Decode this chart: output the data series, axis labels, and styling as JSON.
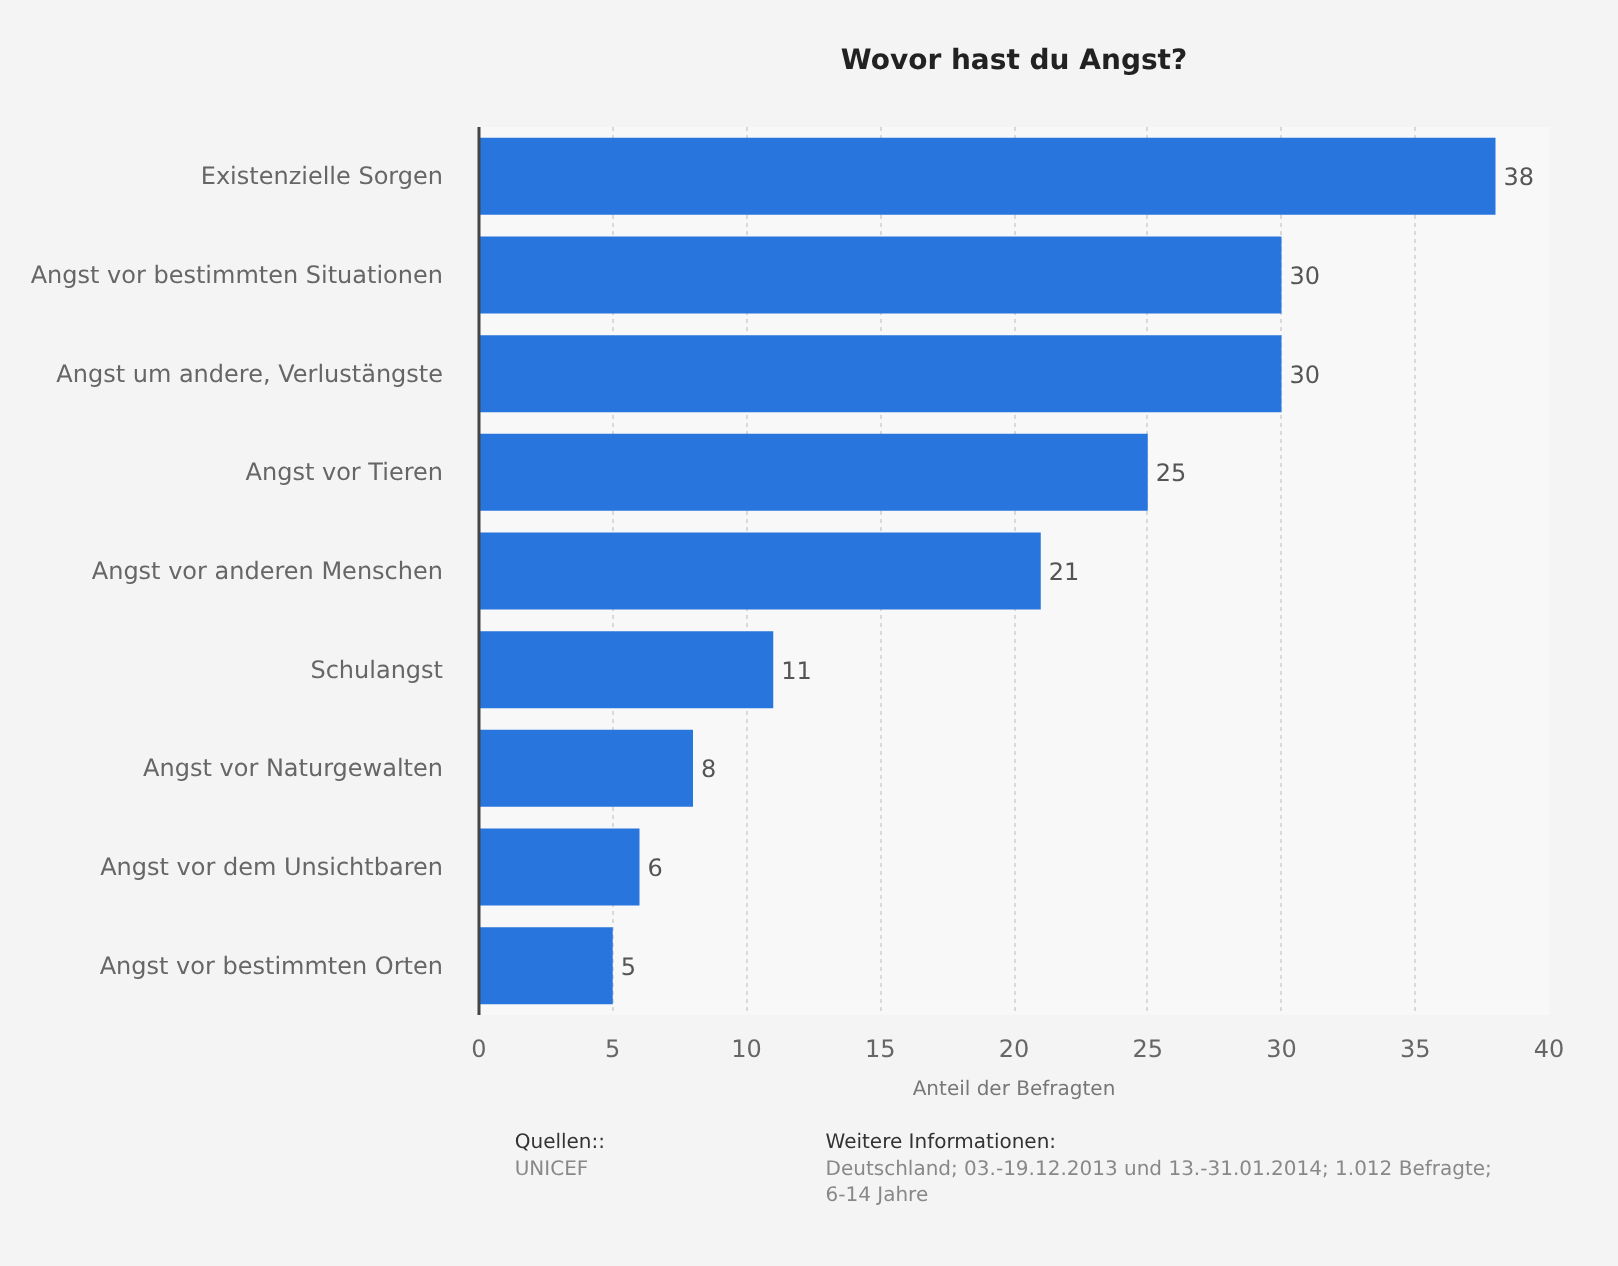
{
  "chart_data": {
    "type": "bar",
    "orientation": "horizontal",
    "title": "Wovor hast du Angst?",
    "xlabel": "Anteil der Befragten",
    "categories": [
      "Existenzielle Sorgen",
      "Angst vor bestimmten Situationen",
      "Angst um andere, Verlustängste",
      "Angst vor Tieren",
      "Angst vor anderen Menschen",
      "Schulangst",
      "Angst vor Naturgewalten",
      "Angst vor dem Unsichtbaren",
      "Angst vor bestimmten Orten"
    ],
    "values": [
      38,
      30,
      30,
      25,
      21,
      11,
      8,
      6,
      5
    ],
    "color": "#2876dd",
    "xlim": [
      0,
      40
    ],
    "xticks": [
      0,
      5,
      10,
      15,
      20,
      25,
      30,
      35,
      40
    ],
    "grid": "x",
    "data_labels": true,
    "annotations": [
      "Quellen::",
      "UNICEF",
      "Weitere Informationen:",
      "Deutschland; 03.-19.12.2013 und 13.-31.01.2014; 1.012 Befragte; 6-14 Jahre"
    ]
  }
}
